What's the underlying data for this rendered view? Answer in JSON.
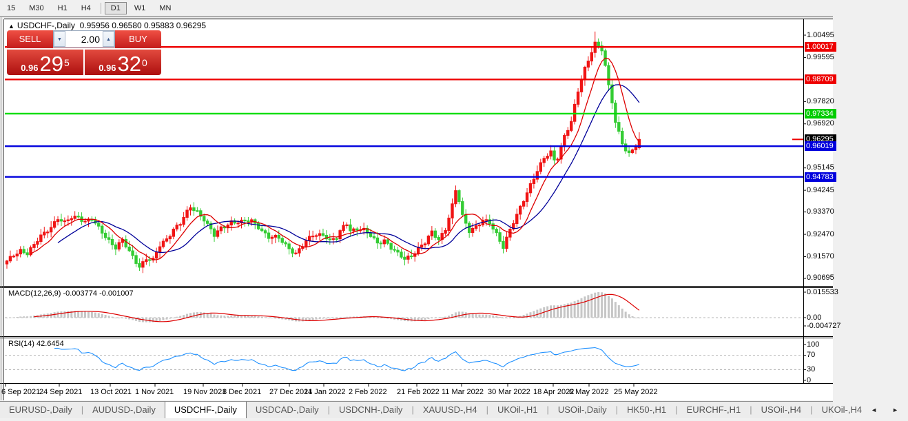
{
  "toolbar": {
    "timeframes": [
      "15",
      "M30",
      "H1",
      "H4",
      "D1",
      "W1",
      "MN"
    ],
    "active": "D1"
  },
  "chart_header": {
    "collapse_icon": "▲",
    "symbol": "USDCHF-,Daily",
    "ohlc": "0.95956 0.96580 0.95883 0.96295"
  },
  "trade_panel": {
    "sell_label": "SELL",
    "buy_label": "BUY",
    "volume": "2.00",
    "bid": {
      "prefix": "0.96",
      "big": "29",
      "sup": "5"
    },
    "ask": {
      "prefix": "0.96",
      "big": "32",
      "sup": "0"
    }
  },
  "indicators": {
    "macd_label": "MACD(12,26,9) -0.003774 -0.001007",
    "rsi_label": "RSI(14) 42.6454"
  },
  "tabs": {
    "items": [
      "EURUSD-,Daily",
      "AUDUSD-,Daily",
      "USDCHF-,Daily",
      "USDCAD-,Daily",
      "USDCNH-,Daily",
      "XAUUSD-,H4",
      "UKOil-,H1",
      "USOil-,Daily",
      "HK50-,H1",
      "EURCHF-,H1",
      "USOil-,H4",
      "UKOil-,H4"
    ],
    "active_index": 2,
    "scroll_left": "◄",
    "scroll_right": "►"
  },
  "colors": {
    "bull_candle": "#f01414",
    "bear_candle": "#33cc33",
    "ma_fast": "#dd0000",
    "ma_slow": "#000099",
    "level_red": "#ee0000",
    "level_green": "#00dd00",
    "level_blue": "#0000dd",
    "current_tag_bg": "#000000",
    "macd_bar": "#c6c6c6",
    "macd_signal": "#dd0000",
    "rsi_line": "#1e90ff"
  },
  "chart_data": {
    "type": "candlestick+macd+rsi",
    "symbol": "USDCHF-,Daily",
    "last_ohlc": {
      "open": 0.95956,
      "high": 0.9658,
      "low": 0.95883,
      "close": 0.96295
    },
    "bid": "0.96295",
    "ask": "0.96320",
    "candle_count": 187,
    "close_anchors": [
      [
        0,
        0.9135
      ],
      [
        2,
        0.9165
      ],
      [
        4,
        0.9185
      ],
      [
        6,
        0.917
      ],
      [
        8,
        0.92
      ],
      [
        10,
        0.924
      ],
      [
        13,
        0.928
      ],
      [
        15,
        0.931
      ],
      [
        17,
        0.929
      ],
      [
        19,
        0.9315
      ],
      [
        21,
        0.932
      ],
      [
        23,
        0.93
      ],
      [
        25,
        0.9305
      ],
      [
        27,
        0.927
      ],
      [
        30,
        0.9225
      ],
      [
        32,
        0.9195
      ],
      [
        34,
        0.922
      ],
      [
        36,
        0.9175
      ],
      [
        39,
        0.912
      ],
      [
        41,
        0.915
      ],
      [
        43,
        0.914
      ],
      [
        45,
        0.92
      ],
      [
        47,
        0.923
      ],
      [
        49,
        0.927
      ],
      [
        51,
        0.929
      ],
      [
        54,
        0.9355
      ],
      [
        56,
        0.934
      ],
      [
        58,
        0.931
      ],
      [
        61,
        0.924
      ],
      [
        63,
        0.927
      ],
      [
        66,
        0.93
      ],
      [
        69,
        0.9295
      ],
      [
        72,
        0.93
      ],
      [
        74,
        0.928
      ],
      [
        77,
        0.9235
      ],
      [
        80,
        0.923
      ],
      [
        82,
        0.9205
      ],
      [
        85,
        0.917
      ],
      [
        87,
        0.92
      ],
      [
        90,
        0.9245
      ],
      [
        93,
        0.925
      ],
      [
        95,
        0.922
      ],
      [
        97,
        0.923
      ],
      [
        99,
        0.928
      ],
      [
        100,
        0.9295
      ],
      [
        101,
        0.9265
      ],
      [
        103,
        0.927
      ],
      [
        105,
        0.926
      ],
      [
        107,
        0.924
      ],
      [
        109,
        0.9215
      ],
      [
        111,
        0.9225
      ],
      [
        113,
        0.919
      ],
      [
        115,
        0.9165
      ],
      [
        117,
        0.915
      ],
      [
        119,
        0.9165
      ],
      [
        121,
        0.919
      ],
      [
        123,
        0.921
      ],
      [
        125,
        0.9255
      ],
      [
        127,
        0.923
      ],
      [
        129,
        0.927
      ],
      [
        131,
        0.936
      ],
      [
        132,
        0.942
      ],
      [
        133,
        0.938
      ],
      [
        134,
        0.932
      ],
      [
        136,
        0.9265
      ],
      [
        138,
        0.928
      ],
      [
        140,
        0.93
      ],
      [
        142,
        0.929
      ],
      [
        144,
        0.925
      ],
      [
        146,
        0.92
      ],
      [
        148,
        0.9265
      ],
      [
        150,
        0.932
      ],
      [
        152,
        0.9385
      ],
      [
        154,
        0.945
      ],
      [
        156,
        0.9505
      ],
      [
        158,
        0.955
      ],
      [
        160,
        0.9575
      ],
      [
        161,
        0.9545
      ],
      [
        162,
        0.956
      ],
      [
        164,
        0.9645
      ],
      [
        166,
        0.97
      ],
      [
        168,
        0.982
      ],
      [
        169,
        0.987
      ],
      [
        170,
        0.9915
      ],
      [
        171,
        0.995
      ],
      [
        172,
        0.999
      ],
      [
        173,
        1.002
      ],
      [
        174,
        1.0005
      ],
      [
        175,
        0.999
      ],
      [
        176,
        0.992
      ],
      [
        177,
        0.984
      ],
      [
        178,
        0.978
      ],
      [
        179,
        0.97
      ],
      [
        180,
        0.966
      ],
      [
        181,
        0.962
      ],
      [
        182,
        0.959
      ],
      [
        183,
        0.957
      ],
      [
        184,
        0.9585
      ],
      [
        185,
        0.9605
      ],
      [
        186,
        0.96295
      ]
    ],
    "ma_fast_period": 8,
    "ma_slow_period": 16,
    "price_axis": {
      "ticks": [
        "1.00495",
        "0.99595",
        "0.97820",
        "0.96920",
        "0.95145",
        "0.94245",
        "0.93370",
        "0.92470",
        "0.91570",
        "0.90695"
      ],
      "tags": [
        {
          "text": "1.00017",
          "price": 1.00017,
          "bg": "#ee0000",
          "line": true
        },
        {
          "text": "0.98709",
          "price": 0.98709,
          "bg": "#ee0000",
          "line": true
        },
        {
          "text": "0.97334",
          "price": 0.97334,
          "bg": "#00cc00",
          "line": true,
          "line_color": "#00dd00"
        },
        {
          "text": "0.96295",
          "price": 0.96295,
          "bg": "#000000",
          "line": false,
          "stub": true
        },
        {
          "text": "0.96019",
          "price": 0.96019,
          "bg": "#0000dd",
          "line": true
        },
        {
          "text": "0.94783",
          "price": 0.94783,
          "bg": "#0000dd",
          "line": true
        }
      ]
    },
    "x_axis_dates": [
      [
        "6 Sep 2021",
        8
      ],
      [
        "24 Sep 2021",
        86
      ],
      [
        "13 Oct 2021",
        160
      ],
      [
        "1 Nov 2021",
        225
      ],
      [
        "19 Nov 2021",
        295
      ],
      [
        "8 Dec 2021",
        352
      ],
      [
        "27 Dec 2021",
        420
      ],
      [
        "14 Jan 2022",
        470
      ],
      [
        "2 Feb 2022",
        535
      ],
      [
        "21 Feb 2022",
        605
      ],
      [
        "11 Mar 2022",
        670
      ],
      [
        "30 Mar 2022",
        737
      ],
      [
        "18 Apr 2022",
        803
      ],
      [
        "6 May 2022",
        855
      ],
      [
        "25 May 2022",
        920
      ]
    ],
    "macd": {
      "params": "12,26,9",
      "last_hist": -0.003774,
      "last_signal": -0.001007,
      "axis_labels": [
        "0.015533",
        "0.00",
        "-0.004727"
      ]
    },
    "rsi": {
      "period": 14,
      "last": 42.6454,
      "axis_labels": [
        "100",
        "70",
        "30",
        "0"
      ],
      "guide_levels": [
        70,
        30
      ]
    }
  }
}
